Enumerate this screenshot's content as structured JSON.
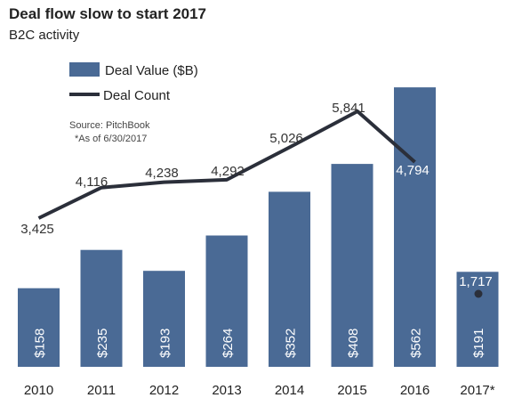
{
  "header": {
    "title": "Deal flow slow to start 2017",
    "subtitle": "B2C activity"
  },
  "legend": {
    "bar_label": "Deal Value ($B)",
    "line_label": "Deal Count"
  },
  "notes": {
    "source": "Source: PitchBook",
    "asof": "*As of 6/30/2017"
  },
  "colors": {
    "bar": "#4a6a95",
    "line": "#2b2f3a",
    "bar_label": "#ffffff"
  },
  "chart_data": {
    "type": "bar",
    "categories": [
      "2010",
      "2011",
      "2012",
      "2013",
      "2014",
      "2015",
      "2016",
      "2017*"
    ],
    "series": [
      {
        "name": "Deal Value ($B)",
        "type": "bar",
        "values": [
          158,
          235,
          193,
          264,
          352,
          408,
          562,
          191
        ],
        "labels": [
          "$158",
          "$235",
          "$193",
          "$264",
          "$352",
          "$408",
          "$562",
          "$191"
        ]
      },
      {
        "name": "Deal Count",
        "type": "line",
        "values": [
          3425,
          4116,
          4238,
          4292,
          5026,
          5841,
          4794,
          1717
        ],
        "labels": [
          "3,425",
          "4,116",
          "4,238",
          "4,292",
          "5,026",
          "5,841",
          "4,794",
          "1,717"
        ]
      }
    ],
    "bar_ylim": [
      0,
      580
    ],
    "line_ylim": [
      0,
      8000
    ],
    "grid": false,
    "legend_position": "top-left"
  }
}
